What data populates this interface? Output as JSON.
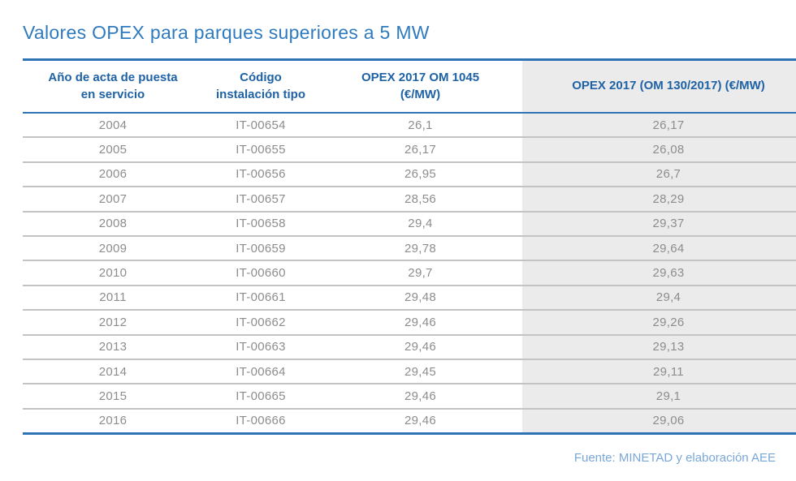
{
  "page": {
    "title": "Valores OPEX para parques superiores a 5 MW",
    "source_note": "Fuente: MINETAD y elaboración AEE"
  },
  "chart_data": {
    "type": "table",
    "title": "Valores OPEX para parques superiores a 5 MW",
    "columns": [
      "Año de acta de puesta en servicio",
      "Código instalación tipo",
      "OPEX 2017 OM 1045 (€/MW)",
      "OPEX 2017 (OM 130/2017) (€/MW)"
    ],
    "column_display": [
      "Año de acta de puesta\nen servicio",
      "Código\ninstalación tipo",
      "OPEX 2017 OM 1045\n(€/MW)",
      "OPEX 2017 (OM 130/2017) (€/MW)"
    ],
    "rows": [
      {
        "year": "2004",
        "codigo": "IT-00654",
        "opex_om1045": "26,1",
        "opex_om130": "26,17"
      },
      {
        "year": "2005",
        "codigo": "IT-00655",
        "opex_om1045": "26,17",
        "opex_om130": "26,08"
      },
      {
        "year": "2006",
        "codigo": "IT-00656",
        "opex_om1045": "26,95",
        "opex_om130": "26,7"
      },
      {
        "year": "2007",
        "codigo": "IT-00657",
        "opex_om1045": "28,56",
        "opex_om130": "28,29"
      },
      {
        "year": "2008",
        "codigo": "IT-00658",
        "opex_om1045": "29,4",
        "opex_om130": "29,37"
      },
      {
        "year": "2009",
        "codigo": "IT-00659",
        "opex_om1045": "29,78",
        "opex_om130": "29,64"
      },
      {
        "year": "2010",
        "codigo": "IT-00660",
        "opex_om1045": "29,7",
        "opex_om130": "29,63"
      },
      {
        "year": "2011",
        "codigo": "IT-00661",
        "opex_om1045": "29,48",
        "opex_om130": "29,4"
      },
      {
        "year": "2012",
        "codigo": "IT-00662",
        "opex_om1045": "29,46",
        "opex_om130": "29,26"
      },
      {
        "year": "2013",
        "codigo": "IT-00663",
        "opex_om1045": "29,46",
        "opex_om130": "29,13"
      },
      {
        "year": "2014",
        "codigo": "IT-00664",
        "opex_om1045": "29,45",
        "opex_om130": "29,11"
      },
      {
        "year": "2015",
        "codigo": "IT-00665",
        "opex_om1045": "29,46",
        "opex_om130": "29,1"
      },
      {
        "year": "2016",
        "codigo": "IT-00666",
        "opex_om1045": "29,46",
        "opex_om130": "29,06"
      }
    ]
  },
  "colors": {
    "title_blue": "#2f7bbf",
    "header_text_blue": "#1e62a5",
    "rule_blue": "#2e74b5",
    "data_text_gray": "#8d8d8d",
    "shaded_column_bg": "#ebebeb",
    "row_separator_gray": "#c3c3c3",
    "source_text_blue": "#79a7d9"
  }
}
